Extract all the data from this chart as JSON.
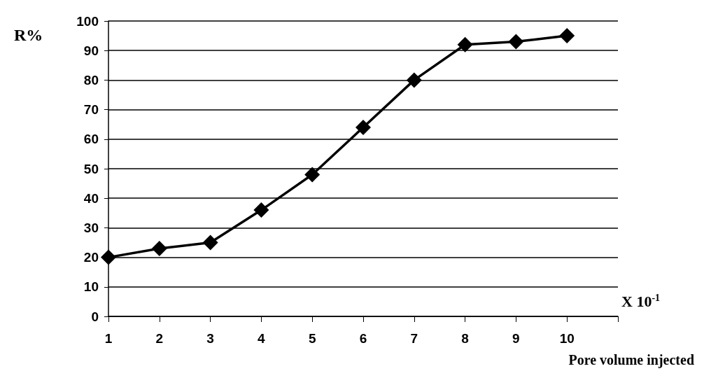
{
  "chart_data": {
    "type": "line",
    "xlabel": "Pore volume injected",
    "ylabel": "R%",
    "annotations": [
      "X 10$^{-1}$"
    ],
    "x": [
      1,
      2,
      3,
      4,
      5,
      6,
      7,
      8,
      9,
      10
    ],
    "series": [
      {
        "color": "#000000",
        "values": [
          20,
          23,
          25,
          36,
          48,
          64,
          80,
          92,
          93,
          95
        ]
      }
    ],
    "xlim": [
      1,
      11
    ],
    "xticks": [
      1,
      2,
      3,
      4,
      5,
      6,
      7,
      8,
      9,
      10,
      {
        "value": 11,
        "label": null
      }
    ],
    "ylim": [
      0,
      100
    ],
    "yticks": [
      0,
      10,
      20,
      30,
      40,
      50,
      60,
      70,
      80,
      90,
      100
    ],
    "grid": "y",
    "marker": "diamond",
    "line_style": "solid"
  }
}
